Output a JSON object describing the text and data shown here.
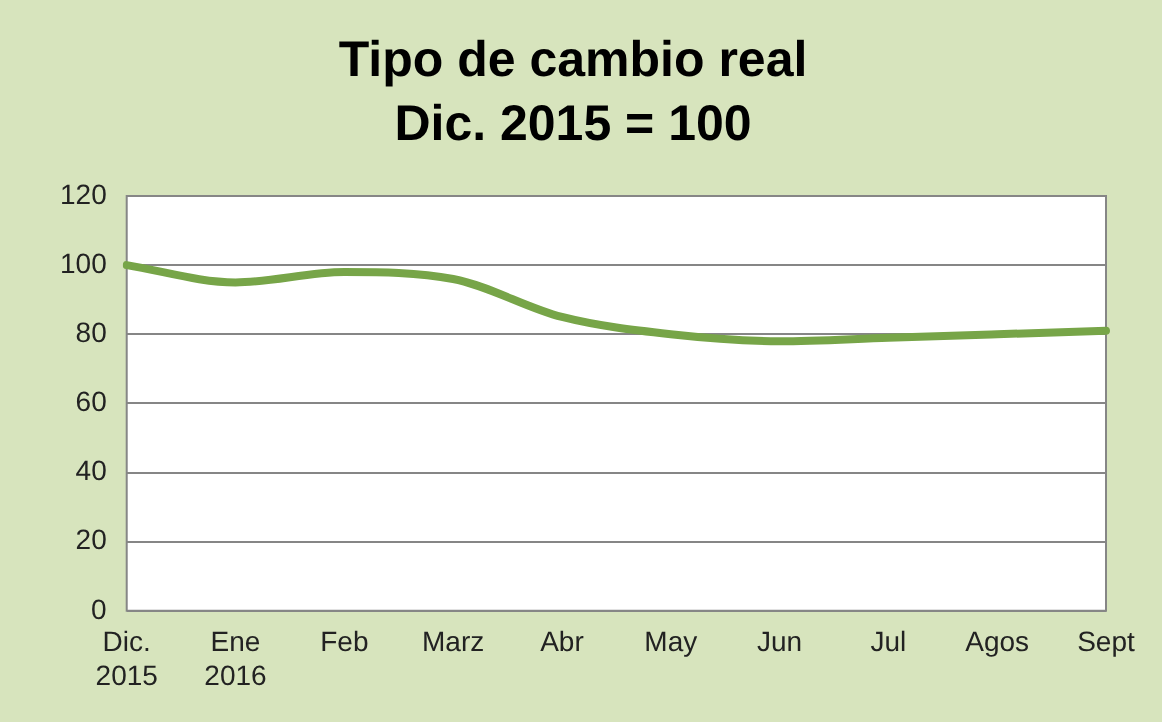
{
  "chart_data": {
    "type": "line",
    "title": "Tipo de cambio real",
    "subtitle": "Dic. 2015 = 100",
    "categories": [
      "Dic. 2015",
      "Ene 2016",
      "Feb",
      "Marz",
      "Abr",
      "May",
      "Jun",
      "Jul",
      "Agos",
      "Sept"
    ],
    "series": [
      {
        "color": "#77a548",
        "values": [
          100,
          95,
          98,
          96,
          85,
          80,
          78,
          79,
          80,
          81
        ]
      }
    ],
    "ylim": [
      0,
      120
    ],
    "yticks": [
      0,
      20,
      40,
      60,
      80,
      100,
      120
    ],
    "grid": "y",
    "legend": false,
    "marker": "none",
    "line_style": "solid"
  }
}
